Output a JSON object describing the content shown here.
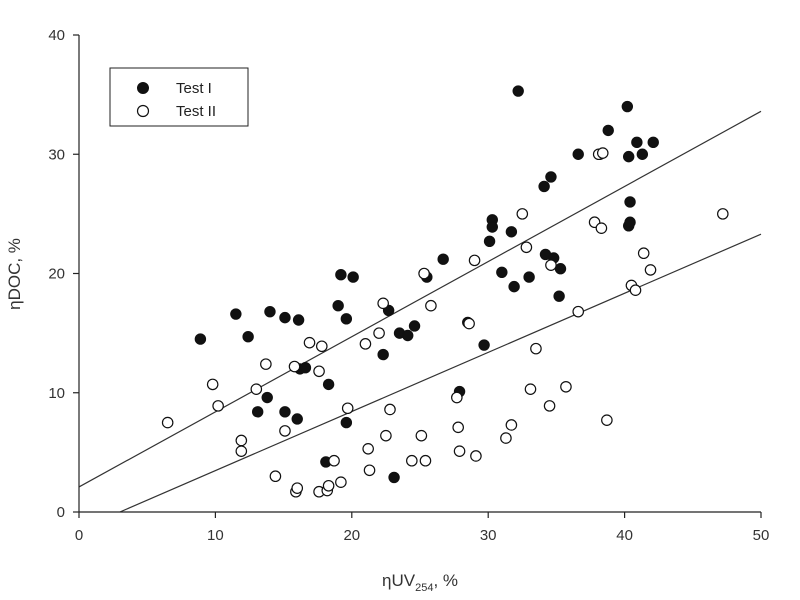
{
  "chart_data": {
    "type": "scatter",
    "title": "",
    "xlabel": {
      "prefix": "ηUV",
      "sub": "254",
      "suffix": ", %"
    },
    "ylabel": "ηDOC, %",
    "xlim": [
      0,
      50
    ],
    "ylim": [
      0,
      40
    ],
    "xticks": [
      0,
      10,
      20,
      30,
      40,
      50
    ],
    "yticks": [
      0,
      10,
      20,
      30,
      40
    ],
    "grid": false,
    "legend": "top-left",
    "series": [
      {
        "name": "Test I",
        "marker": "filled-circle",
        "points": [
          [
            8.9,
            14.5
          ],
          [
            11.5,
            16.6
          ],
          [
            12.4,
            14.7
          ],
          [
            13.1,
            8.4
          ],
          [
            13.8,
            9.6
          ],
          [
            14.0,
            16.8
          ],
          [
            15.1,
            16.3
          ],
          [
            15.1,
            8.4
          ],
          [
            16.0,
            7.8
          ],
          [
            16.1,
            16.1
          ],
          [
            16.2,
            12.0
          ],
          [
            16.6,
            12.1
          ],
          [
            18.1,
            4.2
          ],
          [
            18.3,
            10.7
          ],
          [
            19.0,
            17.3
          ],
          [
            19.2,
            19.9
          ],
          [
            19.6,
            16.2
          ],
          [
            19.6,
            7.5
          ],
          [
            20.1,
            19.7
          ],
          [
            22.3,
            13.2
          ],
          [
            22.7,
            16.9
          ],
          [
            23.1,
            2.9
          ],
          [
            23.5,
            15.0
          ],
          [
            24.1,
            14.8
          ],
          [
            24.6,
            15.6
          ],
          [
            25.5,
            19.7
          ],
          [
            26.7,
            21.2
          ],
          [
            27.9,
            10.1
          ],
          [
            28.5,
            15.9
          ],
          [
            29.7,
            14.0
          ],
          [
            30.1,
            22.7
          ],
          [
            30.3,
            24.5
          ],
          [
            30.3,
            23.9
          ],
          [
            31.0,
            20.1
          ],
          [
            31.7,
            23.5
          ],
          [
            31.9,
            18.9
          ],
          [
            32.2,
            35.3
          ],
          [
            33.0,
            19.7
          ],
          [
            34.1,
            27.3
          ],
          [
            34.2,
            21.6
          ],
          [
            34.6,
            28.1
          ],
          [
            34.8,
            21.3
          ],
          [
            35.2,
            18.1
          ],
          [
            35.3,
            20.4
          ],
          [
            36.6,
            30.0
          ],
          [
            38.2,
            30.0
          ],
          [
            38.8,
            32.0
          ],
          [
            40.2,
            34.0
          ],
          [
            40.3,
            29.8
          ],
          [
            40.3,
            24.0
          ],
          [
            40.4,
            24.3
          ],
          [
            40.4,
            26.0
          ],
          [
            40.9,
            31.0
          ],
          [
            41.3,
            30.0
          ],
          [
            42.1,
            31.0
          ]
        ]
      },
      {
        "name": "Test II",
        "marker": "open-circle",
        "points": [
          [
            6.5,
            7.5
          ],
          [
            9.8,
            10.7
          ],
          [
            10.2,
            8.9
          ],
          [
            11.9,
            6.0
          ],
          [
            11.9,
            5.1
          ],
          [
            13.0,
            10.3
          ],
          [
            13.7,
            12.4
          ],
          [
            14.4,
            3.0
          ],
          [
            15.1,
            6.8
          ],
          [
            15.8,
            12.2
          ],
          [
            15.9,
            1.7
          ],
          [
            16.0,
            2.0
          ],
          [
            16.9,
            14.2
          ],
          [
            17.6,
            11.8
          ],
          [
            17.8,
            13.9
          ],
          [
            17.6,
            1.7
          ],
          [
            18.2,
            1.8
          ],
          [
            18.3,
            2.2
          ],
          [
            18.7,
            4.3
          ],
          [
            19.2,
            2.5
          ],
          [
            19.7,
            8.7
          ],
          [
            21.0,
            14.1
          ],
          [
            21.2,
            5.3
          ],
          [
            21.3,
            3.5
          ],
          [
            22.0,
            15.0
          ],
          [
            22.3,
            17.5
          ],
          [
            22.5,
            6.4
          ],
          [
            22.8,
            8.6
          ],
          [
            24.4,
            4.3
          ],
          [
            25.1,
            6.4
          ],
          [
            25.3,
            20.0
          ],
          [
            25.4,
            4.3
          ],
          [
            25.8,
            17.3
          ],
          [
            27.7,
            9.6
          ],
          [
            27.8,
            7.1
          ],
          [
            27.9,
            5.1
          ],
          [
            28.6,
            15.8
          ],
          [
            29.0,
            21.1
          ],
          [
            29.1,
            4.7
          ],
          [
            31.3,
            6.2
          ],
          [
            31.7,
            7.3
          ],
          [
            32.5,
            25.0
          ],
          [
            32.8,
            22.2
          ],
          [
            33.1,
            10.3
          ],
          [
            33.5,
            13.7
          ],
          [
            34.5,
            8.9
          ],
          [
            34.6,
            20.7
          ],
          [
            35.7,
            10.5
          ],
          [
            36.6,
            16.8
          ],
          [
            37.8,
            24.3
          ],
          [
            38.1,
            30.0
          ],
          [
            38.3,
            23.8
          ],
          [
            38.4,
            30.1
          ],
          [
            38.7,
            7.7
          ],
          [
            40.5,
            19.0
          ],
          [
            40.8,
            18.6
          ],
          [
            41.4,
            21.7
          ],
          [
            41.9,
            20.3
          ],
          [
            47.2,
            25.0
          ]
        ]
      }
    ],
    "fit_lines": [
      {
        "series": "Test I",
        "x": [
          0,
          50
        ],
        "y": [
          2.1,
          33.6
        ]
      },
      {
        "series": "Test II",
        "x": [
          3.0,
          50
        ],
        "y": [
          0,
          23.3
        ]
      }
    ]
  }
}
